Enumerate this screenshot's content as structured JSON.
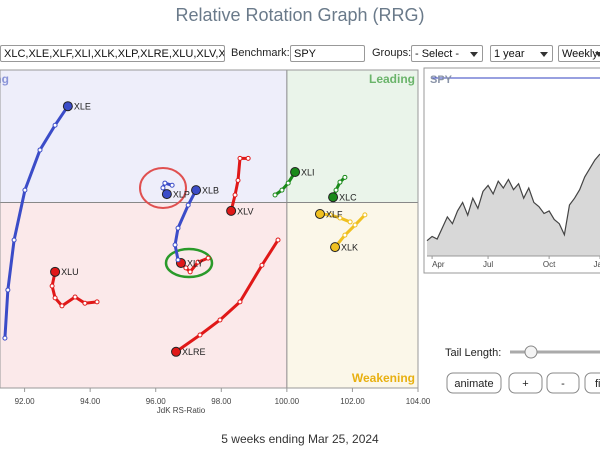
{
  "title": "Relative Rotation Graph (RRG)",
  "toolbar": {
    "symbols": "XLC,XLE,XLF,XLI,XLK,XLP,XLRE,XLU,XLV,XL",
    "benchmark_label": "Benchmark:",
    "benchmark": "SPY",
    "groups_label": "Groups:",
    "groups": "- Select -",
    "period": "1 year",
    "interval": "Weekly"
  },
  "chart_data": [
    {
      "type": "scatter",
      "xlabel": "JdK RS-Ratio",
      "xlim": [
        91.25,
        104
      ],
      "ylim": [
        95.8,
        103
      ],
      "center": [
        100,
        100
      ],
      "xticks": [
        {
          "value": 92,
          "label": "92.00"
        },
        {
          "value": 94,
          "label": "94.00"
        },
        {
          "value": 96,
          "label": "96.00"
        },
        {
          "value": 98,
          "label": "98.00"
        },
        {
          "value": 100,
          "label": "100.00"
        },
        {
          "value": 102,
          "label": "102.00"
        },
        {
          "value": 104,
          "label": "104.00"
        }
      ],
      "quadrants": {
        "leading": "Leading",
        "weakening": "Weakening",
        "lagging": "Lagging"
      },
      "series": [
        {
          "name": "XLE",
          "color": "#3b4cc8",
          "x": [
            91.4,
            91.49,
            91.68,
            92.01,
            92.47,
            92.93,
            93.32
          ],
          "y": [
            96.93,
            98.02,
            99.15,
            100.28,
            101.19,
            101.75,
            102.18
          ]
        },
        {
          "name": "XLU",
          "color": "#e01818",
          "x": [
            94.21,
            93.84,
            93.54,
            93.14,
            92.93,
            92.84,
            92.93
          ],
          "y": [
            97.75,
            97.72,
            97.86,
            97.66,
            97.84,
            98.11,
            98.43
          ]
        },
        {
          "name": "XLRE",
          "color": "#e01818",
          "x": [
            99.73,
            99.24,
            98.57,
            97.96,
            97.35,
            96.62
          ],
          "y": [
            99.15,
            98.58,
            97.75,
            97.34,
            97.0,
            96.62
          ]
        },
        {
          "name": "XLY",
          "color": "#e01818",
          "x": [
            97.6,
            97.29,
            97.05,
            96.92,
            96.77
          ],
          "y": [
            98.74,
            98.65,
            98.43,
            98.52,
            98.63
          ]
        },
        {
          "name": "XLV",
          "color": "#e01818",
          "x": [
            98.82,
            98.57,
            98.51,
            98.42,
            98.3
          ],
          "y": [
            101.0,
            101.0,
            100.5,
            100.17,
            99.81
          ]
        },
        {
          "name": "XLB",
          "color": "#3b4cc8",
          "x": [
            96.68,
            96.59,
            96.68,
            96.99,
            97.23
          ],
          "y": [
            98.7,
            99.04,
            99.42,
            99.94,
            100.28
          ]
        },
        {
          "name": "XLP",
          "color": "#3b4cc8",
          "x": [
            96.5,
            96.28,
            96.22,
            96.34
          ],
          "y": [
            100.39,
            100.44,
            100.33,
            100.19
          ]
        },
        {
          "name": "XLI",
          "color": "#1a8a1a",
          "x": [
            99.64,
            99.85,
            100.04,
            100.25
          ],
          "y": [
            100.17,
            100.28,
            100.44,
            100.69
          ]
        },
        {
          "name": "XLC",
          "color": "#1a8a1a",
          "x": [
            101.77,
            101.62,
            101.5,
            101.41
          ],
          "y": [
            100.57,
            100.46,
            100.28,
            100.12
          ]
        },
        {
          "name": "XLF",
          "color": "#f0c020",
          "x": [
            101.93,
            101.62,
            101.32,
            101.01
          ],
          "y": [
            99.56,
            99.65,
            99.72,
            99.74
          ]
        },
        {
          "name": "XLK",
          "color": "#f0c020",
          "x": [
            102.38,
            102.08,
            101.77,
            101.47
          ],
          "y": [
            99.72,
            99.49,
            99.26,
            98.99
          ]
        }
      ]
    },
    {
      "type": "line",
      "title": "SPY",
      "color": "#444",
      "xlim": [
        0,
        34
      ],
      "ylim": [
        0,
        200
      ],
      "x": [
        0,
        1,
        2,
        3,
        4,
        5,
        6,
        7,
        8,
        9,
        10,
        11,
        12,
        13,
        14,
        15,
        16,
        17,
        18,
        19,
        20,
        21,
        22,
        23,
        24,
        25,
        26,
        27,
        28,
        29,
        30,
        31,
        32,
        33,
        34
      ],
      "values": [
        18,
        23,
        20,
        33,
        46,
        38,
        53,
        63,
        48,
        68,
        56,
        76,
        83,
        73,
        88,
        80,
        90,
        78,
        85,
        68,
        80,
        63,
        58,
        50,
        53,
        43,
        38,
        25,
        60,
        68,
        78,
        93,
        103,
        113,
        120
      ],
      "xticks": [
        {
          "value": 1,
          "label": "Apr"
        },
        {
          "value": 12,
          "label": "Jul"
        },
        {
          "value": 24,
          "label": "Oct"
        },
        {
          "value": 34,
          "label": "Jan"
        }
      ]
    }
  ],
  "controls": {
    "tail_length_label": "Tail Length:",
    "buttons": [
      "animate",
      "+",
      "-",
      "fi"
    ]
  },
  "footer": "5 weeks ending Mar 25, 2024"
}
